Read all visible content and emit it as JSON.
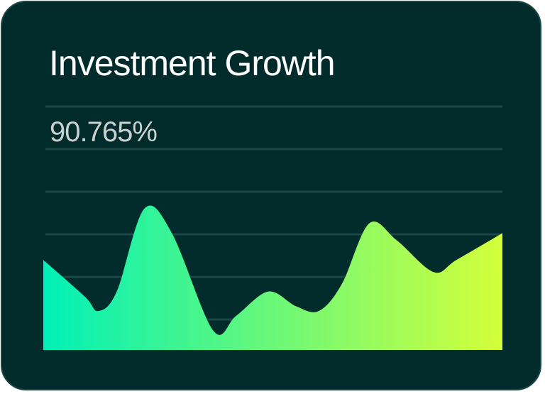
{
  "card": {
    "title": "Investment Growth",
    "value": "90.765%"
  },
  "colors": {
    "background": "#022b2b",
    "gridline": "#1e4848",
    "gradient_start": "#00f0b8",
    "gradient_end": "#d4ff3a"
  },
  "chart_data": {
    "type": "area",
    "title": "",
    "xlabel": "",
    "ylabel": "",
    "grid": true,
    "axes_visible": false,
    "xlim": [
      0,
      100
    ],
    "ylim": [
      0,
      100
    ],
    "gridline_values": [
      12.5,
      30,
      47.5,
      65,
      82.5,
      100
    ],
    "x": [
      0,
      9,
      12,
      16,
      22,
      28,
      37,
      42,
      49,
      55,
      60,
      65,
      71,
      77,
      85,
      90,
      100
    ],
    "values": [
      37,
      22,
      16,
      24,
      58,
      48,
      8,
      14,
      24,
      18,
      16,
      27,
      52,
      45,
      32,
      37,
      48
    ]
  }
}
